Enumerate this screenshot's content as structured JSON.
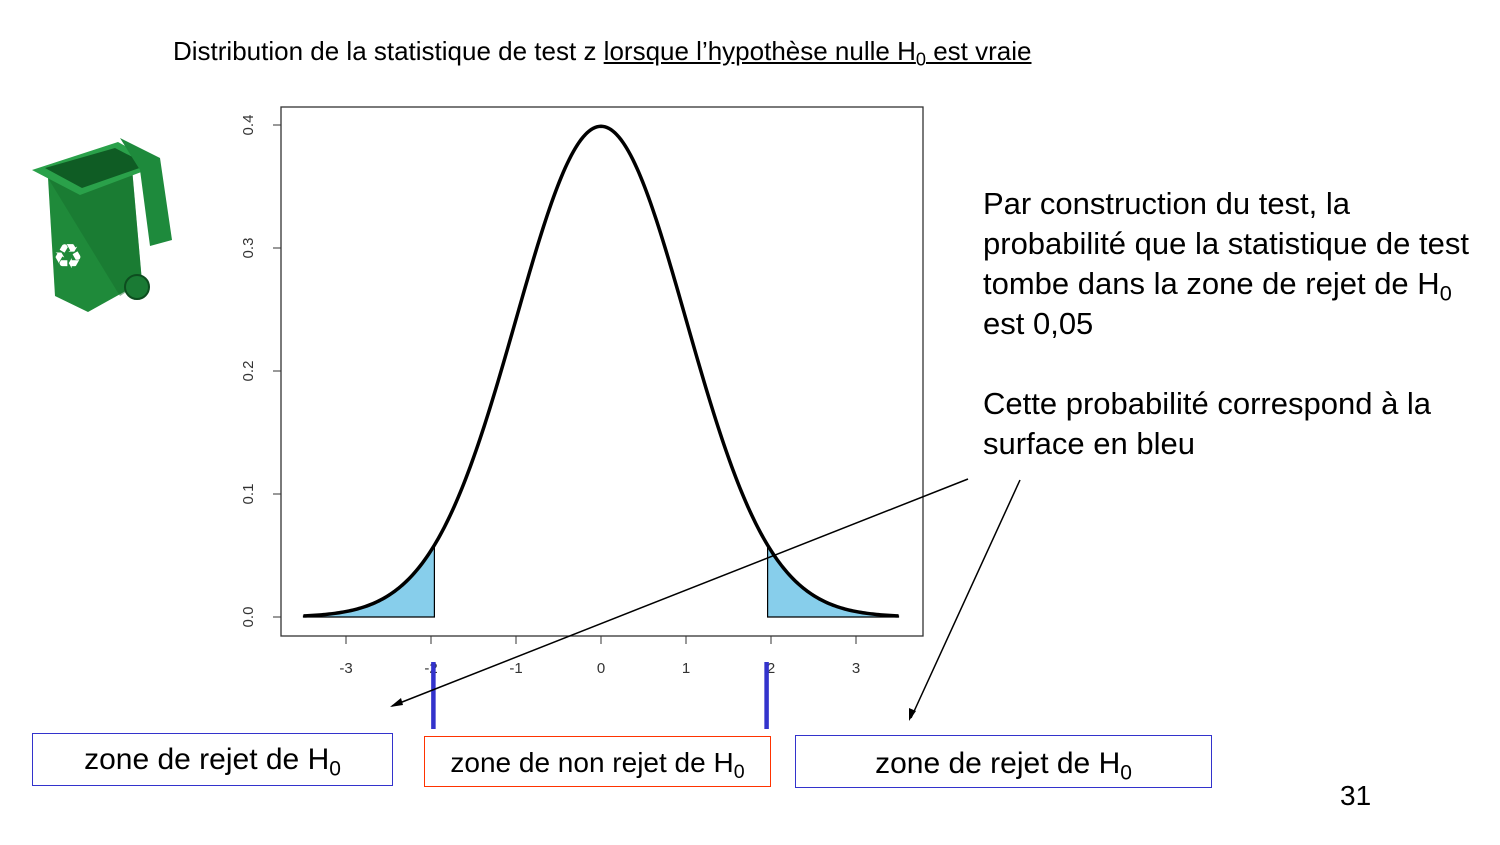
{
  "title": {
    "prefix": "Distribution de la statistique de test z ",
    "underlined": "lorsque l’hypothèse nulle H",
    "underlined_sub": "0",
    "underlined_suffix": " est vraie"
  },
  "notes": {
    "p1": "Par construction du test, la probabilité que la statistique de test tombe dans la zone de rejet de H",
    "p1_sub": "0",
    "p1_end": "  est 0,05",
    "p2": "Cette probabilité correspond à la surface en bleu"
  },
  "zones": {
    "left": {
      "label": "zone de rejet de H",
      "sub": "0",
      "border_color": "#3333cc"
    },
    "middle": {
      "label": "zone de non rejet de H",
      "sub": "0",
      "border_color": "#ff3300"
    },
    "right": {
      "label": "zone de rejet de H",
      "sub": "0",
      "border_color": "#3333cc"
    }
  },
  "page_number": "31",
  "icon": "recycling-bin-icon",
  "chart_data": {
    "type": "area",
    "function": "standard normal density",
    "x_range": [
      -3.5,
      3.5
    ],
    "critical_values": [
      -1.96,
      1.96
    ],
    "shaded_region": "|z| >= 1.96",
    "shade_color": "#87ceeb",
    "curve_color": "#000000",
    "marker_color": "#3333cc",
    "xlim": [
      -3.8,
      3.8
    ],
    "ylim": [
      -0.015,
      0.415
    ],
    "x_ticks": [
      "-3",
      "-2",
      "-1",
      "0",
      "1",
      "2",
      "3"
    ],
    "y_ticks": [
      "0.0",
      "0.1",
      "0.2",
      "0.3",
      "0.4"
    ],
    "grid": false,
    "title": "",
    "xlabel": "",
    "ylabel": ""
  }
}
